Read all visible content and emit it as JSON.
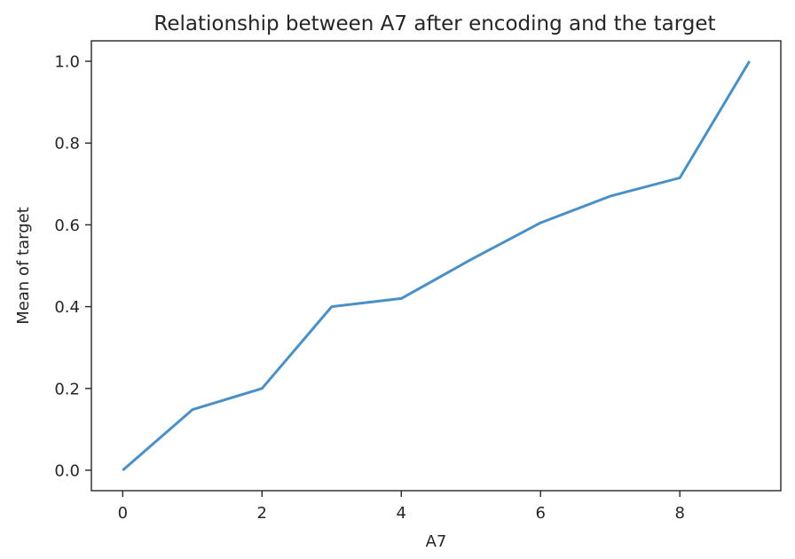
{
  "chart_data": {
    "type": "line",
    "title": "Relationship between A7 after encoding and the target",
    "xlabel": "A7",
    "ylabel": "Mean of target",
    "x": [
      0,
      1,
      2,
      3,
      4,
      5,
      6,
      7,
      8,
      9
    ],
    "series": [
      {
        "values": [
          0.0,
          0.148,
          0.2,
          0.4,
          0.42,
          0.515,
          0.605,
          0.67,
          0.715,
          1.0
        ],
        "color": "#4a8fc6"
      }
    ],
    "xlim": [
      -0.45,
      9.45
    ],
    "ylim": [
      -0.05,
      1.05
    ],
    "xticks": [
      0,
      2,
      4,
      6,
      8
    ],
    "xtick_labels": [
      "0",
      "2",
      "4",
      "6",
      "8"
    ],
    "yticks": [
      0.0,
      0.2,
      0.4,
      0.6,
      0.8,
      1.0
    ],
    "ytick_labels": [
      "0.0",
      "0.2",
      "0.4",
      "0.6",
      "0.8",
      "1.0"
    ],
    "grid": false,
    "legend": "none"
  }
}
